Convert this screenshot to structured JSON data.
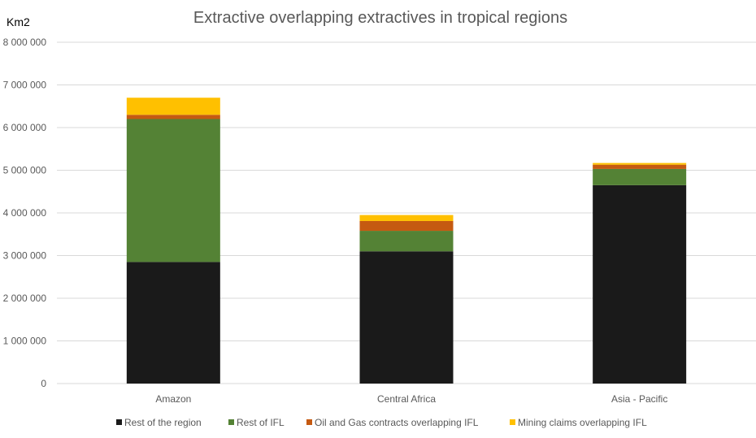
{
  "chart_data": {
    "type": "bar",
    "stacked": true,
    "title": "Extractive overlapping extractives in tropical regions",
    "ylabel": "Km2",
    "xlabel": "",
    "ylim": [
      0,
      8000000
    ],
    "yticks": [
      0,
      1000000,
      2000000,
      3000000,
      4000000,
      5000000,
      6000000,
      7000000,
      8000000
    ],
    "ytick_labels": [
      "0",
      "1 000 000",
      "2 000 000",
      "3 000 000",
      "4 000 000",
      "5 000 000",
      "6 000 000",
      "7 000 000",
      "8 000 000"
    ],
    "grid": true,
    "legend_position": "bottom",
    "categories": [
      "Amazon",
      "Central Africa",
      "Asia - Pacific"
    ],
    "series": [
      {
        "name": "Rest of the region",
        "color": "#1a1a1a",
        "values": [
          2850000,
          3100000,
          4650000
        ]
      },
      {
        "name": "Rest of IFL",
        "color": "#548235",
        "values": [
          3350000,
          480000,
          380000
        ]
      },
      {
        "name": "Oil and Gas contracts overlapping IFL",
        "color": "#c55a11",
        "values": [
          100000,
          230000,
          100000
        ]
      },
      {
        "name": "Mining claims overlapping IFL",
        "color": "#ffc000",
        "values": [
          400000,
          140000,
          40000
        ]
      }
    ]
  }
}
